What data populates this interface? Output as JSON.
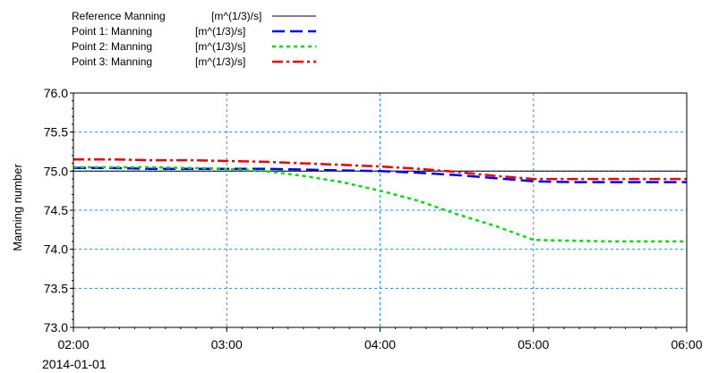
{
  "chart_data": {
    "type": "line",
    "title": "",
    "xlabel": "",
    "ylabel": "Manning number",
    "x_start_label": "2014-01-01",
    "x": [
      "02:00",
      "02:15",
      "02:30",
      "02:45",
      "03:00",
      "03:15",
      "03:30",
      "03:45",
      "04:00",
      "04:15",
      "04:30",
      "04:45",
      "05:00",
      "05:15",
      "05:30",
      "05:45",
      "06:00"
    ],
    "x_ticks": [
      "02:00",
      "03:00",
      "04:00",
      "05:00",
      "06:00"
    ],
    "ylim": [
      73.0,
      76.0
    ],
    "y_ticks": [
      "73.0",
      "73.5",
      "74.0",
      "74.5",
      "75.0",
      "75.5",
      "76.0"
    ],
    "grid": true,
    "legend_position": "top-left",
    "series": [
      {
        "name": "Reference Manning",
        "unit": "[m^(1/3)/s]",
        "color": "#000000",
        "style": "solid",
        "values": [
          75.0,
          75.0,
          75.0,
          75.0,
          75.0,
          75.0,
          75.0,
          75.0,
          75.0,
          75.0,
          75.0,
          75.0,
          75.0,
          75.0,
          75.0,
          75.0,
          75.0
        ]
      },
      {
        "name": "Point 1: Manning",
        "unit": "[m^(1/3)/s]",
        "color": "#0000ff",
        "style": "dashed",
        "values": [
          75.04,
          75.04,
          75.03,
          75.03,
          75.03,
          75.03,
          75.02,
          75.01,
          75.0,
          74.98,
          74.95,
          74.91,
          74.87,
          74.86,
          74.86,
          74.86,
          74.86
        ]
      },
      {
        "name": "Point 2: Manning",
        "unit": "[m^(1/3)/s]",
        "color": "#00dd00",
        "style": "dotted",
        "values": [
          75.05,
          75.05,
          75.05,
          75.04,
          75.03,
          75.0,
          74.94,
          74.86,
          74.75,
          74.62,
          74.45,
          74.3,
          74.12,
          74.11,
          74.1,
          74.1,
          74.1
        ]
      },
      {
        "name": "Point 3: Manning",
        "unit": "[m^(1/3)/s]",
        "color": "#ee0000",
        "style": "dashdot",
        "values": [
          75.15,
          75.15,
          75.14,
          75.14,
          75.13,
          75.12,
          75.1,
          75.08,
          75.06,
          75.03,
          74.99,
          74.94,
          74.9,
          74.9,
          74.9,
          74.9,
          74.9
        ]
      }
    ]
  }
}
